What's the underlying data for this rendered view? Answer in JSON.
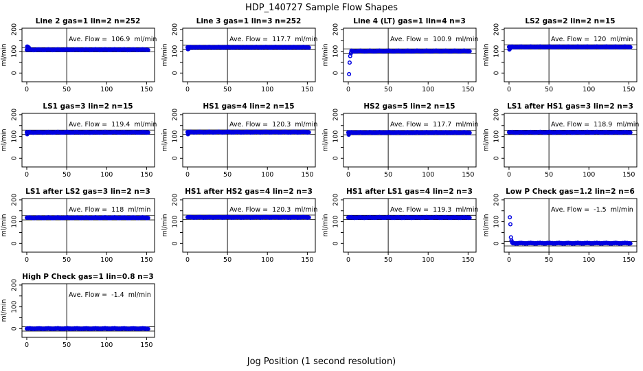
{
  "page": {
    "main_title": "HDP_140727  Sample Flow Shapes",
    "x_axis_label": "Jog Position (1 second resolution)",
    "y_axis_label": "ml/min"
  },
  "colors": {
    "point_blue": "#0000e0",
    "axis_black": "#000000",
    "background": "#ffffff"
  },
  "chart_data": {
    "type": "scatter",
    "layout": {
      "columns": 4,
      "rows": 4,
      "legend": "none",
      "grid_lines": "off"
    },
    "xlim": [
      -6,
      160
    ],
    "ylim": [
      -40,
      206
    ],
    "x_ticks": [
      0,
      50,
      100,
      150
    ],
    "y_ticks": [
      0,
      50,
      100,
      150,
      200
    ],
    "y_labeled_ticks": [
      0,
      100,
      200
    ],
    "vline_x": 50,
    "ref_line_offset": 10,
    "point_x_start": 0,
    "point_x_end": 152,
    "plots": [
      {
        "title": "Line 2 gas=1 lin=2 n=252",
        "ave_flow": 106.9,
        "ave_label": "Ave. Flow =  106.9  ml/min",
        "flat_level": 107,
        "band_start_x": 0,
        "transient_points": [
          [
            0.5,
            122
          ],
          [
            1,
            121
          ],
          [
            1.6,
            120
          ],
          [
            2.2,
            118
          ],
          [
            2.8,
            116
          ],
          [
            3.4,
            113
          ]
        ]
      },
      {
        "title": "Line 3 gas=1 lin=3 n=252",
        "ave_flow": 117.7,
        "ave_label": "Ave. Flow =  117.7  ml/min",
        "flat_level": 118,
        "band_start_x": 0,
        "transient_points": [
          [
            0.5,
            109
          ],
          [
            1,
            110
          ],
          [
            1.6,
            112
          ],
          [
            2.2,
            114
          ]
        ]
      },
      {
        "title": "Line 4 (LT) gas=1 lin=4 n=3",
        "ave_flow": 100.9,
        "ave_label": "Ave. Flow =  100.9  ml/min",
        "flat_level": 101,
        "band_start_x": 4,
        "transient_points": [
          [
            1,
            -5
          ],
          [
            1.7,
            48
          ],
          [
            2.4,
            78
          ],
          [
            3.2,
            90
          ],
          [
            3.8,
            96
          ]
        ]
      },
      {
        "title": "LS2 gas=2 lin=2 n=15",
        "ave_flow": 120,
        "ave_label": "Ave. Flow =  120  ml/min",
        "flat_level": 120,
        "band_start_x": 0,
        "transient_points": [
          [
            0.5,
            108
          ],
          [
            1,
            111
          ],
          [
            1.6,
            114
          ]
        ]
      },
      {
        "title": "LS1 gas=3 lin=2 n=15",
        "ave_flow": 119.4,
        "ave_label": "Ave. Flow =  119.4  ml/min",
        "flat_level": 119,
        "band_start_x": 0,
        "transient_points": [
          [
            0.5,
            110
          ],
          [
            1,
            113
          ]
        ]
      },
      {
        "title": "HS1 gas=4 lin=2 n=15",
        "ave_flow": 120.3,
        "ave_label": "Ave. Flow =  120.3  ml/min",
        "flat_level": 120,
        "band_start_x": 0,
        "transient_points": [
          [
            0.5,
            110
          ],
          [
            1,
            112
          ],
          [
            1.6,
            115
          ]
        ]
      },
      {
        "title": "HS2 gas=5 lin=2 n=15",
        "ave_flow": 117.7,
        "ave_label": "Ave. Flow =  117.7  ml/min",
        "flat_level": 118,
        "band_start_x": 0,
        "transient_points": [
          [
            0.5,
            108
          ],
          [
            1,
            111
          ]
        ]
      },
      {
        "title": "LS1 after HS1 gas=3 lin=2 n=3",
        "ave_flow": 118.9,
        "ave_label": "Ave. Flow =  118.9  ml/min",
        "flat_level": 119,
        "band_start_x": 0,
        "transient_points": []
      },
      {
        "title": "LS1 after LS2 gas=3 lin=2 n=3",
        "ave_flow": 118,
        "ave_label": "Ave. Flow =  118  ml/min",
        "flat_level": 118,
        "band_start_x": 0,
        "transient_points": []
      },
      {
        "title": "HS1 after HS2 gas=4 lin=2 n=3",
        "ave_flow": 120.3,
        "ave_label": "Ave. Flow =  120.3  ml/min",
        "flat_level": 120,
        "band_start_x": 0,
        "transient_points": []
      },
      {
        "title": "HS1 after LS1 gas=4 lin=2 n=3",
        "ave_flow": 119.3,
        "ave_label": "Ave. Flow =  119.3  ml/min",
        "flat_level": 119,
        "band_start_x": 0,
        "transient_points": []
      },
      {
        "title": "Low P Check gas=1.2 lin=2 n=6",
        "ave_flow": -1.5,
        "ave_label": "Ave. Flow =  -1.5  ml/min",
        "flat_level": 1,
        "band_start_x": 4,
        "transient_points": [
          [
            1,
            120
          ],
          [
            1.7,
            88
          ],
          [
            2.4,
            28
          ],
          [
            3,
            14
          ],
          [
            3.6,
            8
          ]
        ]
      },
      {
        "title": "High P Check gas=1 lin=0.8 n=3",
        "ave_flow": -1.4,
        "ave_label": "Ave. Flow =  -1.4  ml/min",
        "flat_level": 0,
        "band_start_x": 0,
        "transient_points": []
      }
    ]
  }
}
